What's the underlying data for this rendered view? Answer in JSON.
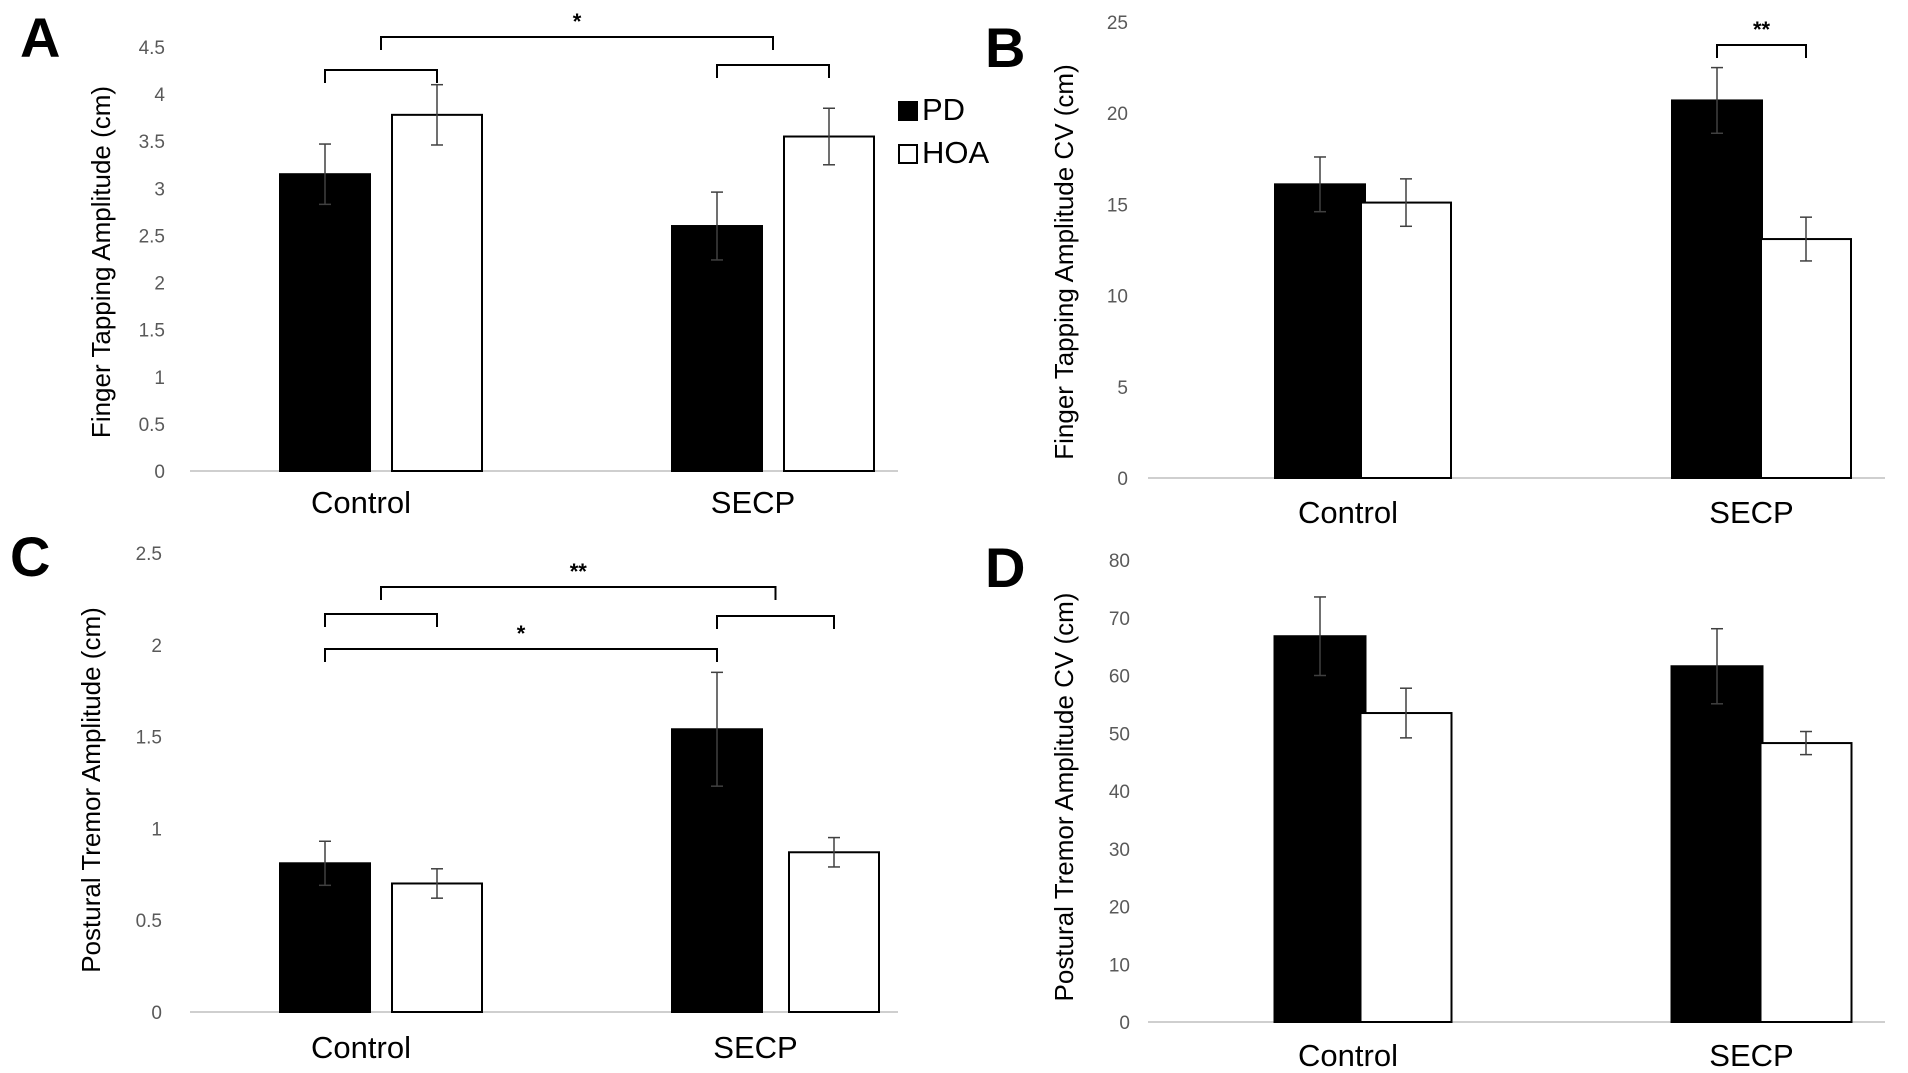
{
  "legend": {
    "entries": [
      {
        "label": "PD",
        "color": "#000000"
      },
      {
        "label": "HOA",
        "color": "#ffffff"
      }
    ]
  },
  "chart_data": [
    {
      "panel_label": "A",
      "type": "bar",
      "categories": [
        "Control",
        "SECP"
      ],
      "series": [
        {
          "name": "PD",
          "values": [
            3.15,
            2.6
          ],
          "errors": [
            0.32,
            0.36
          ]
        },
        {
          "name": "HOA",
          "values": [
            3.78,
            3.55
          ],
          "errors": [
            0.32,
            0.3
          ]
        }
      ],
      "ylabel": "Finger Tapping Amplitude (cm)",
      "ylim": [
        0,
        4.5
      ],
      "yticks": [
        "0",
        "0.5",
        "1",
        "1.5",
        "2",
        "2.5",
        "3",
        "3.5",
        "4",
        "4.5"
      ],
      "significance": [
        {
          "from": [
            0,
            0
          ],
          "to": [
            0,
            1
          ],
          "label": ""
        },
        {
          "from": [
            1,
            0
          ],
          "to": [
            1,
            1
          ],
          "label": ""
        },
        {
          "from": [
            0,
            0.5
          ],
          "to": [
            1,
            0.5
          ],
          "label": "*"
        }
      ]
    },
    {
      "panel_label": "B",
      "type": "bar",
      "categories": [
        "Control",
        "SECP"
      ],
      "series": [
        {
          "name": "PD",
          "values": [
            16.1,
            20.7
          ],
          "errors": [
            1.5,
            1.8
          ]
        },
        {
          "name": "HOA",
          "values": [
            15.1,
            13.1
          ],
          "errors": [
            1.3,
            1.2
          ]
        }
      ],
      "ylabel": "Finger Tapping Amplitude CV (cm)",
      "ylim": [
        0,
        25
      ],
      "yticks": [
        "0",
        "5",
        "10",
        "15",
        "20",
        "25"
      ],
      "significance": [
        {
          "from": [
            1,
            0
          ],
          "to": [
            1,
            1
          ],
          "label": "**"
        }
      ]
    },
    {
      "panel_label": "C",
      "type": "bar",
      "categories": [
        "Control",
        "SECP"
      ],
      "series": [
        {
          "name": "PD",
          "values": [
            0.81,
            1.54
          ],
          "errors": [
            0.12,
            0.31
          ]
        },
        {
          "name": "HOA",
          "values": [
            0.7,
            0.87
          ],
          "errors": [
            0.08,
            0.08
          ]
        }
      ],
      "ylabel": "Postural Tremor Amplitude (cm)",
      "ylim": [
        0,
        2.5
      ],
      "yticks": [
        "0",
        "0.5",
        "1",
        "1.5",
        "2",
        "2.5"
      ],
      "significance": [
        {
          "from": [
            0,
            0
          ],
          "to": [
            0,
            1
          ],
          "label": ""
        },
        {
          "from": [
            1,
            0
          ],
          "to": [
            1,
            1
          ],
          "label": ""
        },
        {
          "from": [
            0,
            0
          ],
          "to": [
            1,
            0
          ],
          "label": "*"
        },
        {
          "from": [
            0,
            0.5
          ],
          "to": [
            1,
            0.5
          ],
          "label": "**"
        }
      ]
    },
    {
      "panel_label": "D",
      "type": "bar",
      "categories": [
        "Control",
        "SECP"
      ],
      "series": [
        {
          "name": "PD",
          "values": [
            66.8,
            61.6
          ],
          "errors": [
            6.8,
            6.5
          ]
        },
        {
          "name": "HOA",
          "values": [
            53.5,
            48.3
          ],
          "errors": [
            4.3,
            2.0
          ]
        }
      ],
      "ylabel": "Postural Tremor Amplitude CV (cm)",
      "ylim": [
        0,
        80
      ],
      "yticks": [
        "0",
        "10",
        "20",
        "30",
        "40",
        "50",
        "60",
        "70",
        "80"
      ],
      "significance": []
    }
  ]
}
